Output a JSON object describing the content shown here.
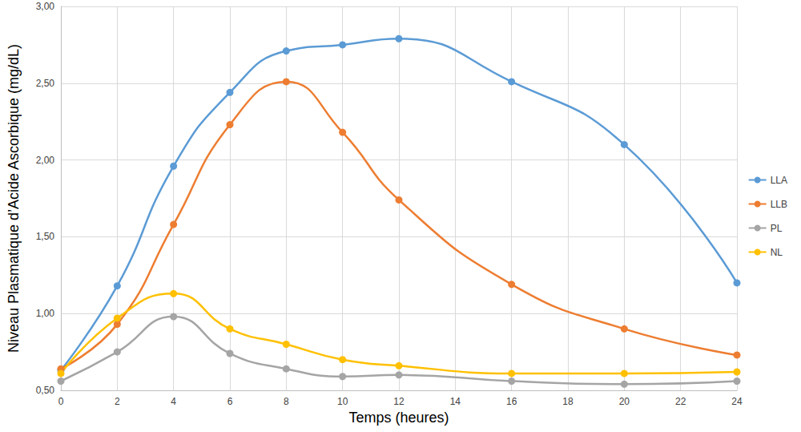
{
  "chart_data": {
    "type": "line",
    "x_label": "Temps (heures)",
    "y_label": "Niveau Plasmatique d’Acide Ascorbique (mg/dL)",
    "x": [
      0,
      2,
      4,
      6,
      8,
      10,
      12,
      16,
      20,
      24
    ],
    "series": [
      {
        "name": "LLA",
        "color": "#5B9BD5",
        "values": [
          0.63,
          1.18,
          1.96,
          2.44,
          2.71,
          2.75,
          2.79,
          2.51,
          2.1,
          1.2
        ]
      },
      {
        "name": "LLB",
        "color": "#ED7D31",
        "values": [
          0.64,
          0.93,
          1.58,
          2.23,
          2.51,
          2.18,
          1.74,
          1.19,
          0.9,
          0.73
        ]
      },
      {
        "name": "PL",
        "color": "#A5A5A5",
        "values": [
          0.56,
          0.75,
          0.98,
          0.74,
          0.64,
          0.59,
          0.6,
          0.56,
          0.54,
          0.56
        ]
      },
      {
        "name": "NL",
        "color": "#FFC000",
        "values": [
          0.61,
          0.97,
          1.13,
          0.9,
          0.8,
          0.7,
          0.66,
          0.61,
          0.61,
          0.62
        ]
      }
    ],
    "xlim": [
      0,
      24
    ],
    "xticks": [
      0,
      2,
      4,
      6,
      8,
      10,
      12,
      14,
      16,
      18,
      20,
      22,
      24
    ],
    "ylim": [
      0.5,
      3.0
    ],
    "yticks": [
      {
        "value": 0.5,
        "label": "0,50"
      },
      {
        "value": 1.0,
        "label": "1,00"
      },
      {
        "value": 1.5,
        "label": "1,50"
      },
      {
        "value": 2.0,
        "label": "2,00"
      },
      {
        "value": 2.5,
        "label": "2,50"
      },
      {
        "value": 3.0,
        "label": "3,00"
      }
    ],
    "grid": true,
    "legend": "right",
    "marker": "circle",
    "line_style": "smooth"
  }
}
